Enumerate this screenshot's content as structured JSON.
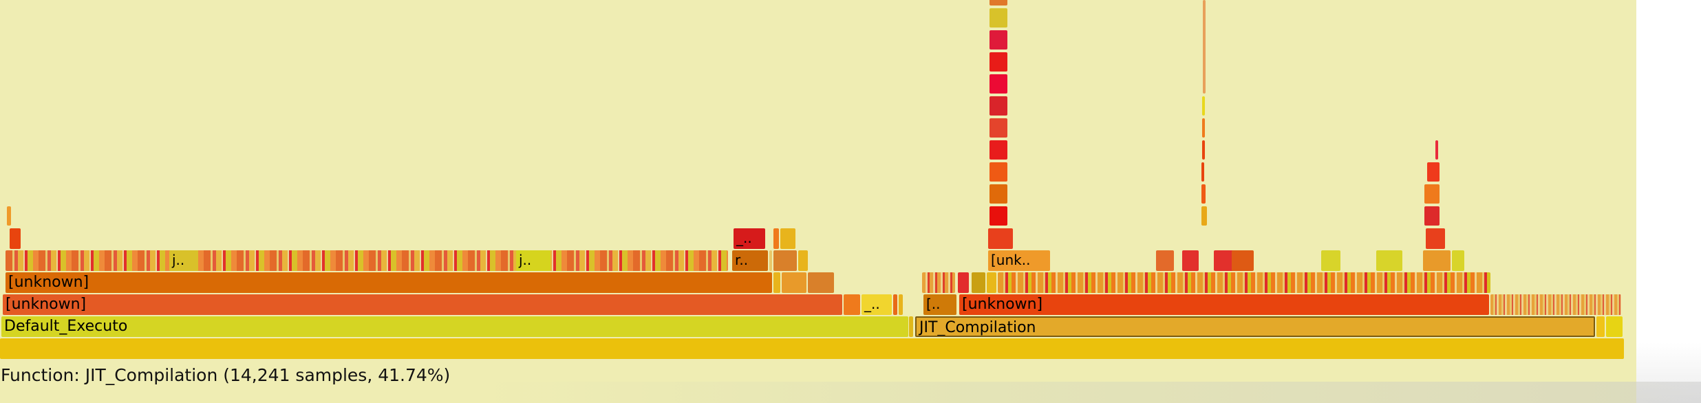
{
  "flamegraph": {
    "status": "Function: JIT_Compilation (14,241 samples, 41.74%)",
    "frames": {
      "default_executor": "Default_Executo",
      "jit_compilation": "JIT_Compilation",
      "unknown_a": "[unknown]",
      "unknown_b": "[unknown]",
      "unknown_c": "[unknown]",
      "unknown_short": "[unk..",
      "bracket_short_a": "[..",
      "bracket_short_b": "[..",
      "underscore_short_a": "_..",
      "underscore_short_b": "_..",
      "r_short": "r..",
      "j_short_a": "j..",
      "j_short_b": "j.."
    },
    "selected_frame": "JIT_Compilation",
    "colors": {
      "background": "#efedb3",
      "root": "#ebc10c",
      "selected": "#e3a92a",
      "default_executor": "#d5d523",
      "unknown_left": "#e45a24",
      "unknown_mid": "#d96a05",
      "unknown_right": "#e8440e"
    }
  }
}
